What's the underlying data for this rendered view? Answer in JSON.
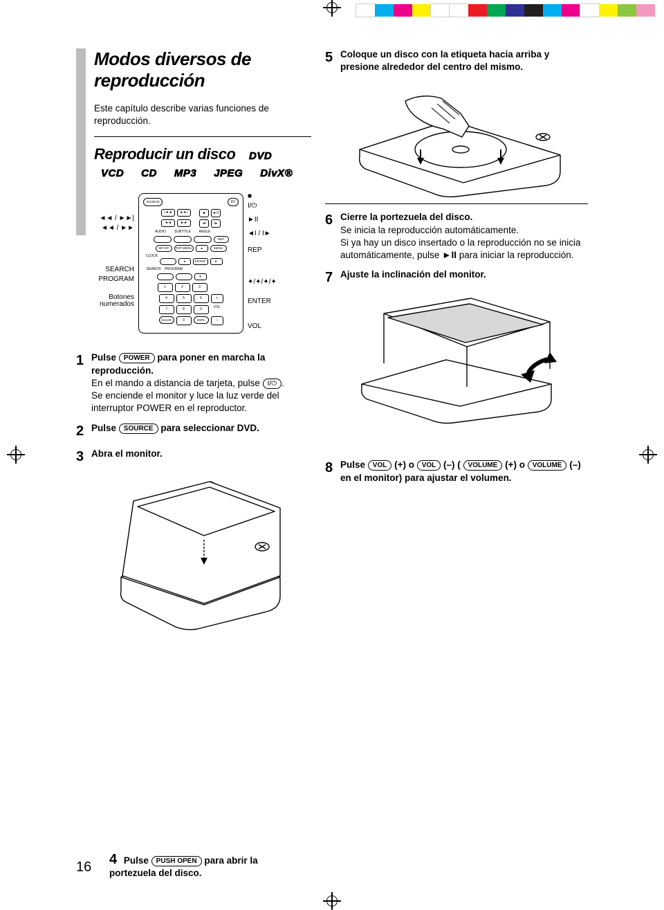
{
  "colorbar": [
    "#ffffff",
    "#00aeef",
    "#ec008c",
    "#fff200",
    "#ffffff",
    "#ffffff",
    "#ed1c24",
    "#00a651",
    "#2e3192",
    "#231f20",
    "#00aeef",
    "#ec008c",
    "#ffffff",
    "#fff200",
    "#8dc63f",
    "#f49ac1"
  ],
  "title": "Modos diversos de reproducción",
  "intro": "Este capítulo describe varias funciones de reproducción.",
  "subhead": "Reproducir un disco",
  "badges": [
    "DVD",
    "VCD",
    "CD",
    "MP3",
    "JPEG",
    "DivX®"
  ],
  "remote": {
    "left_labels": [
      "◄◄ / ►►|",
      "◄◄ / ►►",
      "SEARCH",
      "PROGRAM",
      "Botones\nnumerados"
    ],
    "right_labels": [
      "■",
      "I/⏻",
      "►II",
      "◄I / I►",
      "REP",
      "✦/✦/✦/✦",
      "ENTER",
      "VOL"
    ],
    "top_left": "SOURCE",
    "top_right": "I/⏻",
    "row_audio": [
      "AUDIO",
      "SUBTITLE",
      "ANGLE"
    ],
    "row_setup": [
      "SETUP",
      "TOP MENU",
      "",
      "MENU"
    ],
    "rep": "REP",
    "clock": "CLOCK",
    "search": "SEARCH",
    "program": "PROGRAM",
    "enter": "ENTER",
    "numpad": [
      "1",
      "2",
      "3",
      "4",
      "5",
      "6",
      "7",
      "8",
      "9",
      "0"
    ],
    "clear": "CLEAR",
    "dspl": "DSPL",
    "vol": "VOL"
  },
  "steps": {
    "s1_lead": "Pulse ",
    "s1_key": "POWER",
    "s1_tail": " para poner en marcha la reproducción.",
    "s1_b1": "En el mando a distancia de tarjeta, pulse ",
    "s1_key2": "I/⏻",
    "s1_b2": ".",
    "s1_c": "Se enciende el monitor y luce la luz verde del interruptor POWER en el reproductor.",
    "s2_lead": "Pulse ",
    "s2_key": "SOURCE",
    "s2_tail": " para seleccionar DVD.",
    "s3": "Abra el monitor.",
    "s4_lead": "Pulse ",
    "s4_key": "PUSH OPEN",
    "s4_tail": " para abrir la portezuela del disco.",
    "s5": "Coloque un disco con la etiqueta hacia arriba y presione alrededor del centro del mismo.",
    "s6a": "Cierre la portezuela del disco.",
    "s6b": "Se inicia la reproducción automáticamente.",
    "s6c_a": "Si ya hay un disco insertado o la reproducción no se inicia automáticamente, pulse ",
    "s6c_b": "►II",
    "s6c_c": " para iniciar la reproducción.",
    "s7": "Ajuste la inclinación del monitor.",
    "s8_lead": "Pulse ",
    "s8_k1": "VOL",
    "s8_m1": " (+) o ",
    "s8_k2": "VOL",
    "s8_m2": " (–) ( ",
    "s8_k3": "VOLUME",
    "s8_m3": " (+) o ",
    "s8_k4": "VOLUME",
    "s8_m4": " (–) en el monitor) para ajustar el volumen."
  },
  "pagenum": "16"
}
